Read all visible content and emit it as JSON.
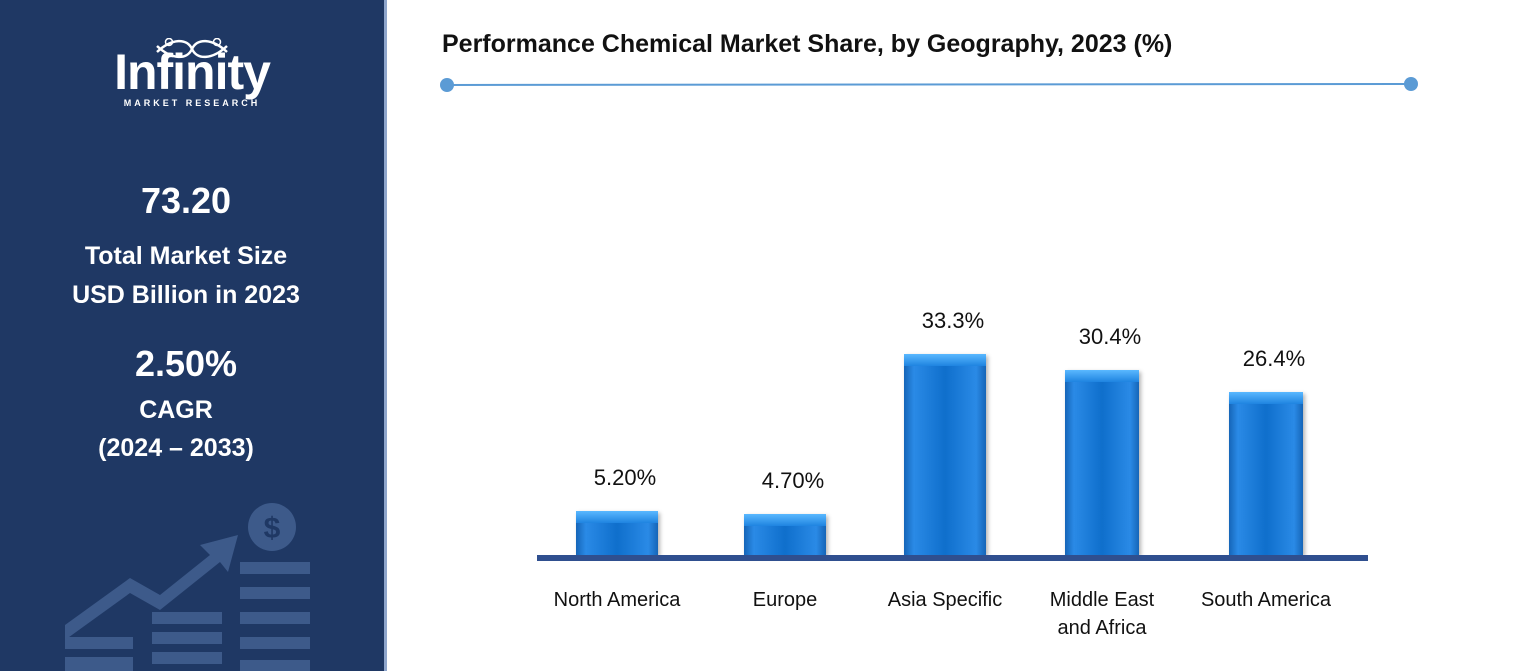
{
  "sidebar": {
    "logo": {
      "name": "Infinity",
      "tagline": "MARKET RESEARCH"
    },
    "market_size": {
      "value": "73.20",
      "label1": "Total Market Size",
      "label2": "USD Billion in 2023"
    },
    "cagr": {
      "value": "2.50%",
      "label1": "CAGR",
      "label2": "(2024 – 2033)"
    },
    "icon": "growth-chart-dollar-icon"
  },
  "colors": {
    "sidebar": "#1f3864",
    "bar": "#0f6fcc",
    "axis": "#2f4f8f",
    "title_line": "#5b9bd5"
  },
  "chart_data": {
    "type": "bar",
    "title": "Performance Chemical Market Share, by Geography, 2023 (%)",
    "categories": [
      "North America",
      "Europe",
      "Asia Specific",
      "Middle East and Africa",
      "South America"
    ],
    "values": [
      5.2,
      4.7,
      33.3,
      30.4,
      26.4
    ],
    "data_labels": [
      "5.20%",
      "4.70%",
      "33.3%",
      "30.4%",
      "26.4%"
    ],
    "xlabel": "",
    "ylabel": "",
    "grid": false
  }
}
